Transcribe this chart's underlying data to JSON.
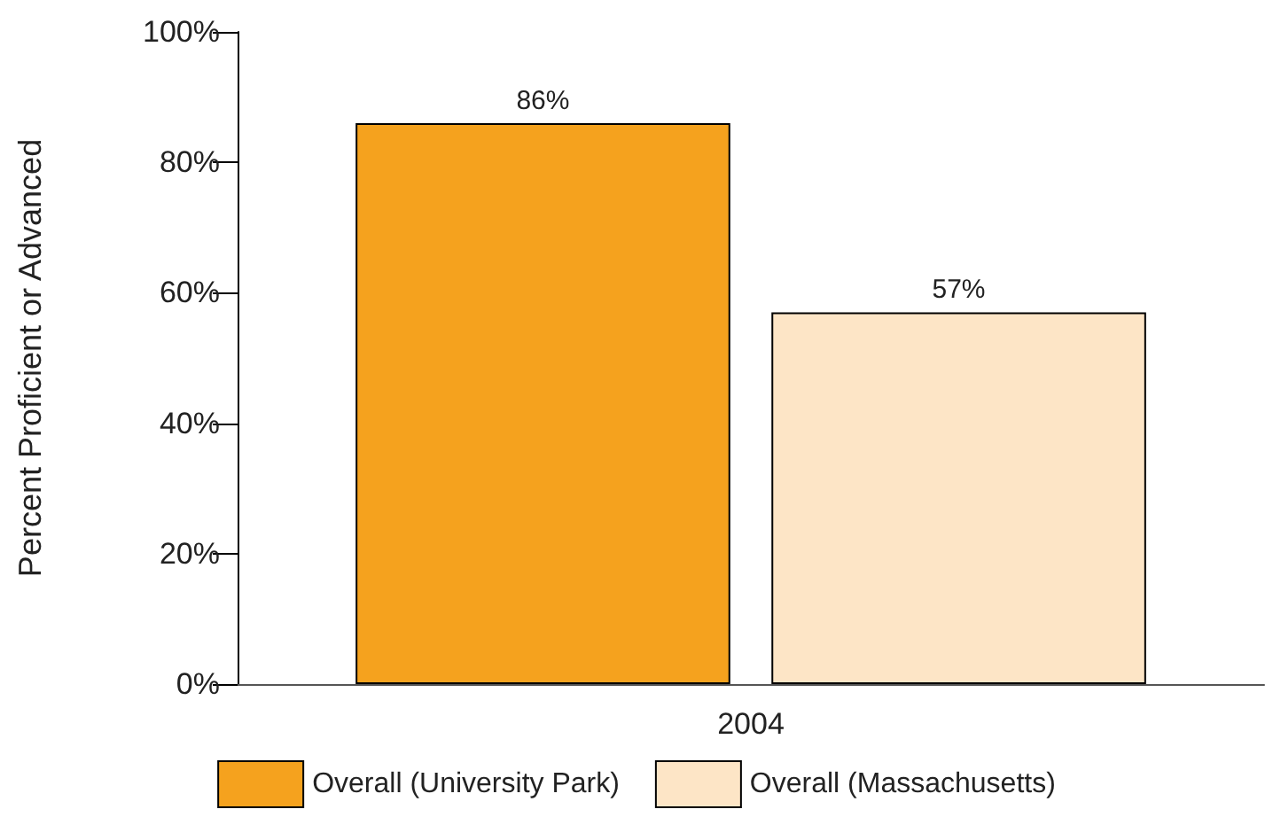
{
  "chart_data": {
    "type": "bar",
    "ylabel": "Percent Proficient or Advanced",
    "categories": [
      "2004"
    ],
    "series": [
      {
        "name": "Overall (University Park)",
        "color": "#f5a21e",
        "values": [
          86
        ],
        "value_labels": [
          "86%"
        ]
      },
      {
        "name": "Overall (Massachusetts)",
        "color": "#fde5c6",
        "values": [
          57
        ],
        "value_labels": [
          "57%"
        ]
      }
    ],
    "ylim": [
      0,
      100
    ],
    "yticks": [
      {
        "value": 0,
        "label": "0%"
      },
      {
        "value": 20,
        "label": "20%"
      },
      {
        "value": 40,
        "label": "40%"
      },
      {
        "value": 60,
        "label": "60%"
      },
      {
        "value": 80,
        "label": "80%"
      },
      {
        "value": 100,
        "label": "100%"
      }
    ],
    "grid": false,
    "legend": "bottom"
  }
}
